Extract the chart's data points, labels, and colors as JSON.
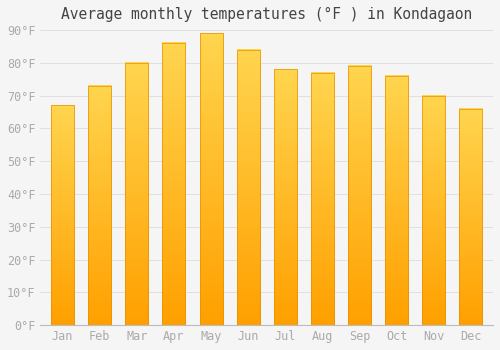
{
  "title": "Average monthly temperatures (°F ) in Kondagaon",
  "months": [
    "Jan",
    "Feb",
    "Mar",
    "Apr",
    "May",
    "Jun",
    "Jul",
    "Aug",
    "Sep",
    "Oct",
    "Nov",
    "Dec"
  ],
  "values": [
    67,
    73,
    80,
    86,
    89,
    84,
    78,
    77,
    79,
    76,
    70,
    66
  ],
  "bar_color_top": "#FFD54F",
  "bar_color_bottom": "#FFA000",
  "background_color": "#F5F5F5",
  "grid_color": "#DDDDDD",
  "text_color": "#AAAAAA",
  "title_color": "#444444",
  "ylim": [
    0,
    90
  ],
  "yticks": [
    0,
    10,
    20,
    30,
    40,
    50,
    60,
    70,
    80,
    90
  ],
  "ytick_labels": [
    "0°F",
    "10°F",
    "20°F",
    "30°F",
    "40°F",
    "50°F",
    "60°F",
    "70°F",
    "80°F",
    "90°F"
  ],
  "title_fontsize": 10.5,
  "tick_fontsize": 8.5
}
